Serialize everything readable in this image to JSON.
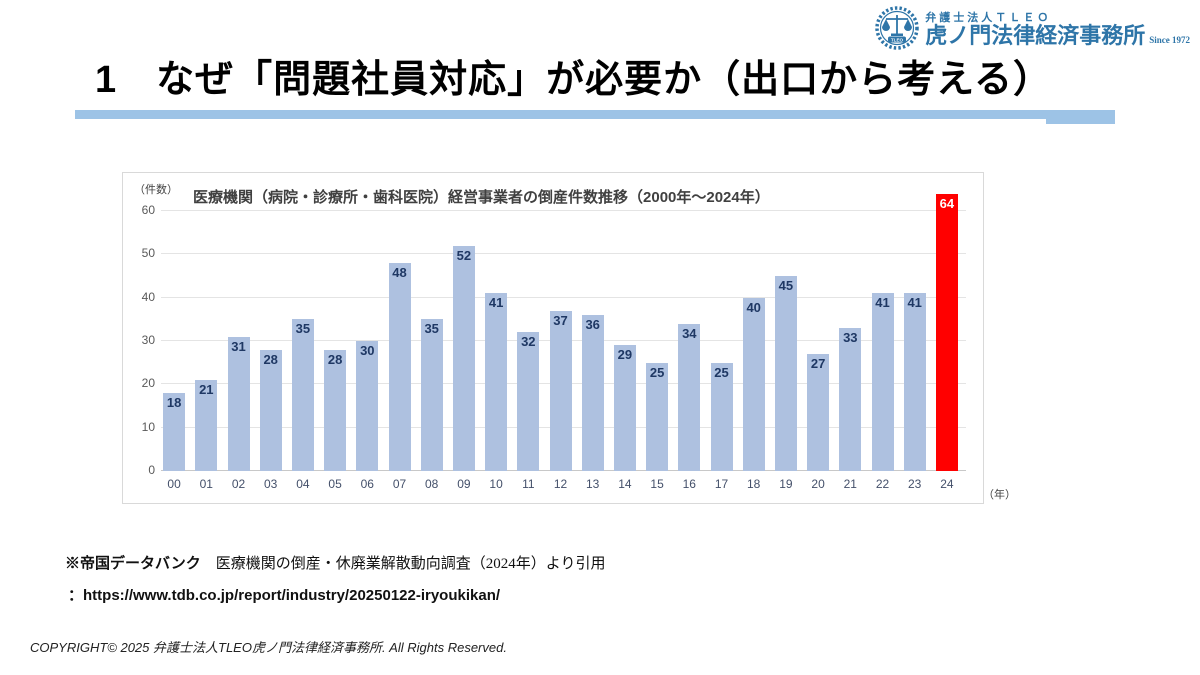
{
  "header": {
    "title": "1　なぜ「問題社員対応」が必要か（出口から考える）",
    "logo": {
      "firm_small": "弁護士法人ＴＬＥＯ",
      "firm_large": "虎ノ門法律経済事務所",
      "since": "Since 1972",
      "color": "#2e75a8"
    },
    "rule_color": "#9dc3e6"
  },
  "chart_data": {
    "type": "bar",
    "title": "医療機関（病院・診療所・歯科医院）経営事業者の倒産件数推移（2000年～2024年）",
    "y_unit_label": "（件数）",
    "x_unit_label": "（年）",
    "categories": [
      "00",
      "01",
      "02",
      "03",
      "04",
      "05",
      "06",
      "07",
      "08",
      "09",
      "10",
      "11",
      "12",
      "13",
      "14",
      "15",
      "16",
      "17",
      "18",
      "19",
      "20",
      "21",
      "22",
      "23",
      "24"
    ],
    "values": [
      18,
      21,
      31,
      28,
      35,
      28,
      30,
      48,
      35,
      52,
      41,
      32,
      37,
      36,
      29,
      25,
      34,
      25,
      40,
      45,
      27,
      33,
      41,
      41,
      64
    ],
    "ylim": [
      0,
      60
    ],
    "yticks": [
      0,
      10,
      20,
      30,
      40,
      50,
      60
    ],
    "grid": true,
    "legend": "none",
    "bar_color": "#aec1e0",
    "highlight_index": 24,
    "highlight_color": "#ff0000",
    "bar_label_color": "#1f3864",
    "highlight_label_color": "#ffffff"
  },
  "source": {
    "line1_bold": "※帝国データバンク",
    "line1_rest": "　医療機関の倒産・休廃業解散動向調査（2024年）より引用",
    "line2": "：https://www.tdb.co.jp/report/industry/20250122-iryoukikan/"
  },
  "footer": {
    "copyright": "COPYRIGHT© 2025 弁護士法人TLEO虎ノ門法律経済事務所. All Rights Reserved."
  }
}
